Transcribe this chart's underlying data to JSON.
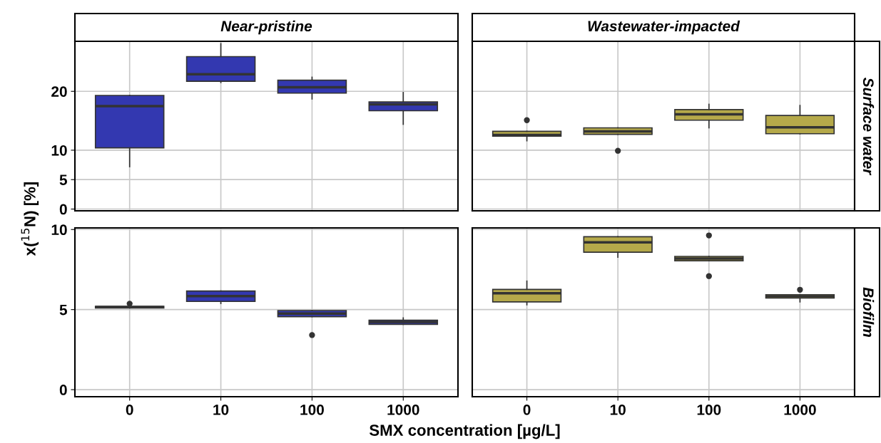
{
  "chart_data": [
    {
      "type": "box",
      "title": "Near-pristine",
      "ylabel": "x($^{15}$N) [%]",
      "categories": [
        "0",
        "10",
        "100",
        "1000"
      ],
      "ylim": [
        -0.3,
        28.5
      ],
      "yticks": [
        0,
        5,
        10,
        20
      ],
      "grid": true,
      "tick_labels": "y",
      "series": [
        {
          "color": "#3338b0",
          "boxes": [
            {
              "low": 7.2,
              "q1": 10.4,
              "median": 17.5,
              "q3": 19.3,
              "high": 19.3
            },
            {
              "low": 21.5,
              "q1": 21.7,
              "median": 22.9,
              "q3": 25.9,
              "high": 28.1
            },
            {
              "low": 18.7,
              "q1": 19.7,
              "median": 20.7,
              "q3": 21.9,
              "high": 22.4
            },
            {
              "low": 14.4,
              "q1": 16.7,
              "median": 17.8,
              "q3": 18.2,
              "high": 19.8
            }
          ]
        }
      ]
    },
    {
      "type": "box",
      "title": "Wastewater-impacted",
      "y2label": "Surface water",
      "categories": [
        "0",
        "10",
        "100",
        "1000"
      ],
      "ylim": [
        -0.3,
        28.5
      ],
      "yticks": [
        0,
        5,
        10,
        20
      ],
      "grid": true,
      "tick_labels": false,
      "series": [
        {
          "color": "#b5a94a",
          "boxes": [
            {
              "low": 11.6,
              "q1": 12.4,
              "median": 12.6,
              "q3": 13.2,
              "high": 13.2,
              "outliers": [
                15.1
              ]
            },
            {
              "low": 12.7,
              "q1": 12.7,
              "median": 13.2,
              "q3": 13.8,
              "high": 13.8,
              "outliers": [
                9.9
              ]
            },
            {
              "low": 13.8,
              "q1": 15.1,
              "median": 16.1,
              "q3": 16.9,
              "high": 17.8
            },
            {
              "low": 12.8,
              "q1": 12.8,
              "median": 13.9,
              "q3": 15.9,
              "high": 17.6
            }
          ]
        }
      ]
    },
    {
      "type": "box",
      "xlabel": "SMX concentration [µg/L]",
      "categories": [
        "0",
        "10",
        "100",
        "1000"
      ],
      "ylim": [
        -0.44,
        10.1
      ],
      "yticks": [
        0,
        5,
        10
      ],
      "grid": true,
      "series": [
        {
          "color": "#3338b0",
          "boxes": [
            {
              "low": 5.1,
              "q1": 5.1,
              "median": 5.15,
              "q3": 5.2,
              "high": 5.2,
              "outliers": [
                5.37
              ]
            },
            {
              "low": 5.38,
              "q1": 5.51,
              "median": 5.84,
              "q3": 6.16,
              "high": 6.16
            },
            {
              "low": 4.56,
              "q1": 4.56,
              "median": 4.75,
              "q3": 4.94,
              "high": 4.94,
              "outliers": [
                3.41
              ]
            },
            {
              "low": 4.08,
              "q1": 4.08,
              "median": 4.23,
              "q3": 4.34,
              "high": 4.48
            }
          ]
        }
      ]
    },
    {
      "type": "box",
      "y2label": "Biofilm",
      "categories": [
        "0",
        "10",
        "100",
        "1000"
      ],
      "ylim": [
        -0.44,
        10.1
      ],
      "yticks": [
        0,
        5,
        10
      ],
      "grid": true,
      "tick_labels": "x",
      "series": [
        {
          "color": "#b5a94a",
          "boxes": [
            {
              "low": 5.3,
              "q1": 5.48,
              "median": 6.02,
              "q3": 6.26,
              "high": 6.78
            },
            {
              "low": 8.27,
              "q1": 8.58,
              "median": 9.2,
              "q3": 9.55,
              "high": 9.55
            },
            {
              "low": 8.05,
              "q1": 8.05,
              "median": 8.19,
              "q3": 8.32,
              "high": 8.32,
              "outliers": [
                9.63,
                7.09
              ]
            },
            {
              "low": 5.48,
              "q1": 5.72,
              "median": 5.83,
              "q3": 5.93,
              "high": 5.93,
              "outliers": [
                6.24
              ]
            }
          ]
        }
      ]
    }
  ]
}
